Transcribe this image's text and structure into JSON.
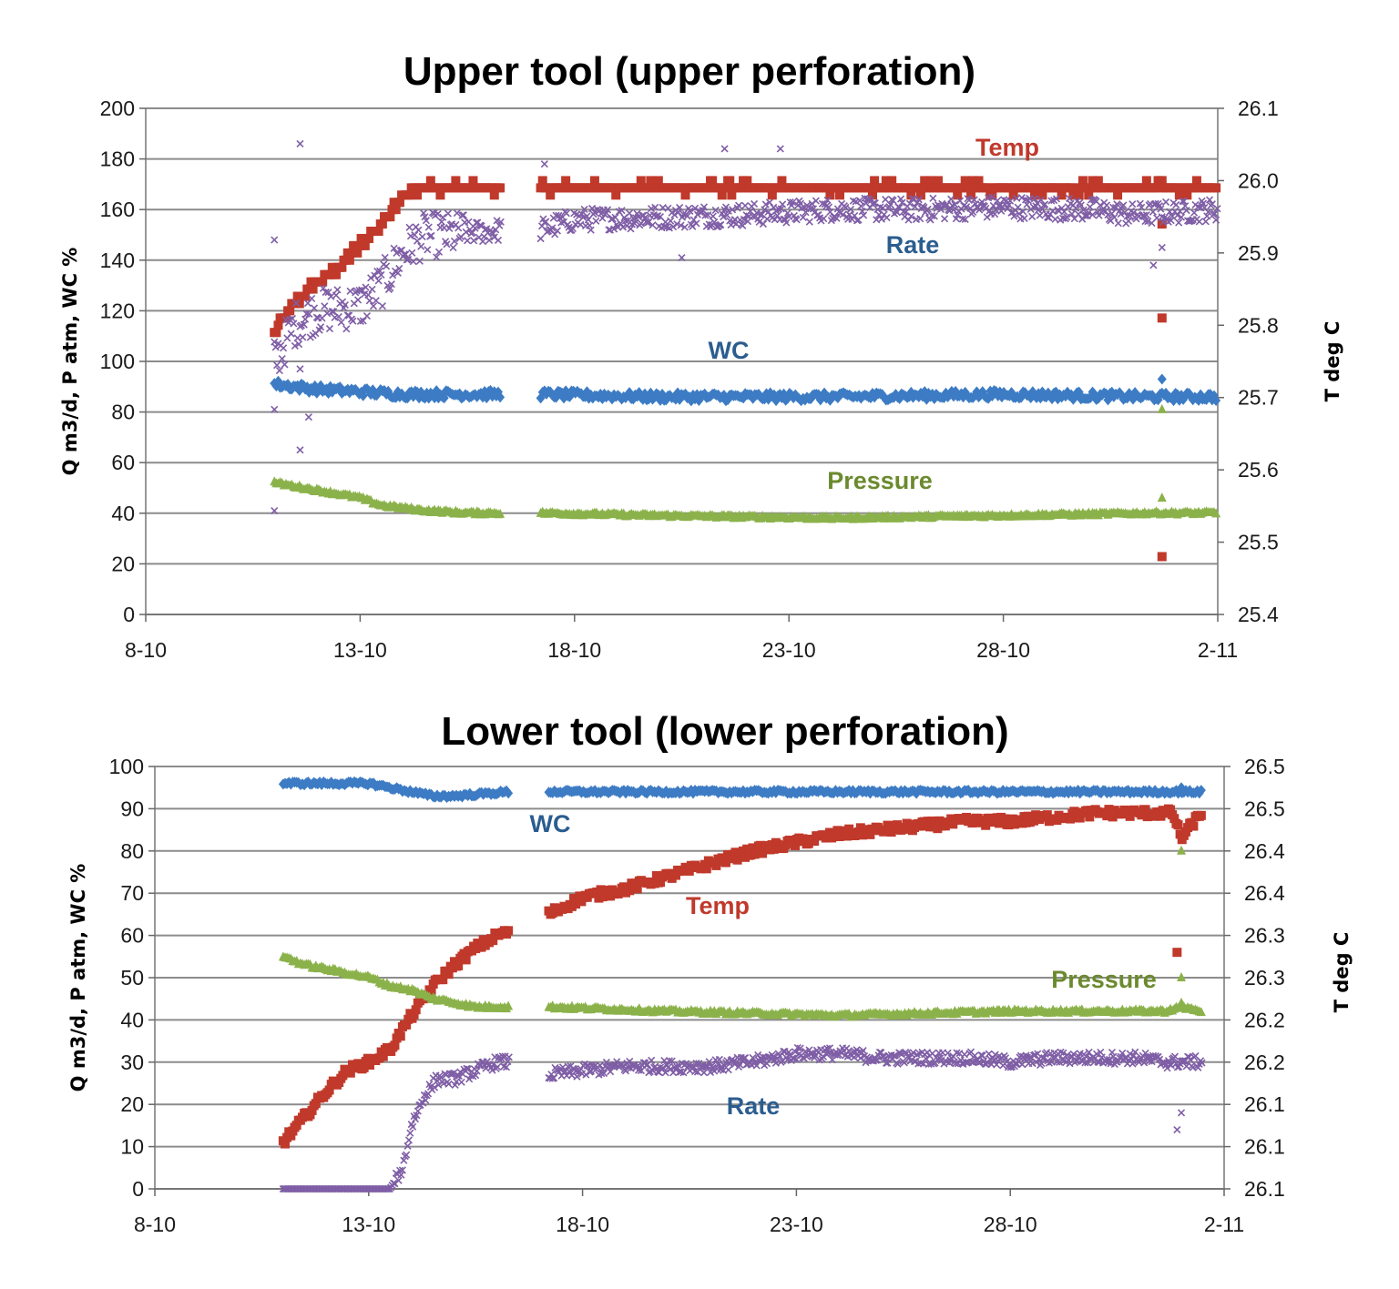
{
  "colors": {
    "temp": "#c0392b",
    "rate": "#7f5ea6",
    "wc": "#3d7cc4",
    "pressure": "#8bb24a",
    "wc_label": "#2b5d8f",
    "rate_label": "#2b5d8f",
    "pressure_label": "#6b8a2e",
    "grid": "#8c8c8c"
  },
  "chart_data": [
    {
      "type": "scatter",
      "title": "Upper tool (upper perforation)",
      "ylabel": "Q m3/d, P atm, WC %",
      "y2label": "T deg C",
      "xlim": [
        0,
        25
      ],
      "ylim": [
        0,
        200
      ],
      "y2lim": [
        25.4,
        26.1
      ],
      "x_ticks": [
        0,
        5,
        10,
        15,
        20,
        25
      ],
      "x_tick_labels": [
        "8-10",
        "13-10",
        "18-10",
        "23-10",
        "28-10",
        "2-11"
      ],
      "y_ticks": [
        "0",
        "20",
        "40",
        "60",
        "80",
        "100",
        "120",
        "140",
        "160",
        "180",
        "200"
      ],
      "y2_ticks": [
        "25.4",
        "25.5",
        "25.6",
        "25.7",
        "25.8",
        "25.9",
        "26.0",
        "26.1"
      ],
      "gap": [
        8.3,
        9.2
      ],
      "labels": {
        "temp": "Temp",
        "rate": "Rate",
        "wc": "WC",
        "pressure": "Pressure"
      },
      "series": [
        {
          "name": "Temp",
          "axis": "y2",
          "marker": "square",
          "key": "temp",
          "values": [
            [
              3.0,
              25.79
            ],
            [
              3.5,
              25.83
            ],
            [
              4.0,
              25.86
            ],
            [
              4.5,
              25.88
            ],
            [
              5.0,
              25.91
            ],
            [
              5.5,
              25.94
            ],
            [
              6.0,
              25.98
            ],
            [
              6.5,
              25.99
            ],
            [
              8.3,
              25.99
            ],
            [
              9.2,
              25.99
            ],
            [
              25.0,
              25.99
            ]
          ],
          "outliers": [
            [
              23.7,
              25.94
            ],
            [
              23.7,
              25.81
            ],
            [
              23.7,
              25.48
            ]
          ]
        },
        {
          "name": "Rate",
          "axis": "y",
          "marker": "x",
          "key": "rate",
          "values": [
            [
              3.0,
              100
            ],
            [
              3.5,
              115
            ],
            [
              4.0,
              120
            ],
            [
              5.0,
              122
            ],
            [
              5.5,
              130
            ],
            [
              6.0,
              143
            ],
            [
              6.5,
              150
            ],
            [
              7.0,
              150
            ],
            [
              8.3,
              152
            ],
            [
              9.2,
              152
            ],
            [
              10.0,
              156
            ],
            [
              12.0,
              157
            ],
            [
              14.0,
              158
            ],
            [
              16.0,
              160
            ],
            [
              18.0,
              160
            ],
            [
              20.0,
              161
            ],
            [
              22.0,
              160
            ],
            [
              23.0,
              158
            ],
            [
              25.0,
              160
            ]
          ],
          "outliers": [
            [
              3.0,
              148
            ],
            [
              3.0,
              81
            ],
            [
              3.0,
              41
            ],
            [
              3.6,
              65
            ],
            [
              3.6,
              97
            ],
            [
              3.6,
              186
            ],
            [
              3.8,
              78
            ],
            [
              9.3,
              178
            ],
            [
              12.5,
              141
            ],
            [
              13.5,
              184
            ],
            [
              14.8,
              184
            ],
            [
              23.5,
              138
            ],
            [
              23.7,
              145
            ]
          ]
        },
        {
          "name": "WC",
          "axis": "y",
          "marker": "diamond",
          "key": "wc",
          "values": [
            [
              3.0,
              91
            ],
            [
              4.0,
              89
            ],
            [
              5.0,
              88
            ],
            [
              6.0,
              87
            ],
            [
              8.3,
              87
            ],
            [
              9.2,
              87
            ],
            [
              12.0,
              86
            ],
            [
              16.0,
              86
            ],
            [
              20.0,
              87
            ],
            [
              23.5,
              86
            ],
            [
              25.0,
              86
            ]
          ],
          "outliers": [
            [
              23.7,
              93
            ]
          ]
        },
        {
          "name": "Pressure",
          "axis": "y",
          "marker": "triangle",
          "key": "pressure",
          "values": [
            [
              3.0,
              52
            ],
            [
              4.0,
              49
            ],
            [
              5.0,
              46
            ],
            [
              5.5,
              43
            ],
            [
              6.5,
              41
            ],
            [
              7.5,
              40
            ],
            [
              8.3,
              40
            ],
            [
              9.2,
              40
            ],
            [
              12.0,
              39
            ],
            [
              16.0,
              38
            ],
            [
              20.0,
              39
            ],
            [
              23.5,
              40
            ],
            [
              25.0,
              40
            ]
          ],
          "outliers": [
            [
              23.7,
              46
            ],
            [
              23.7,
              81
            ]
          ]
        }
      ]
    },
    {
      "type": "scatter",
      "title": "Lower tool (lower perforation)",
      "ylabel": "Q m3/d, P atm, WC %",
      "y2label": "T deg C",
      "xlim": [
        0,
        25
      ],
      "ylim": [
        0,
        100
      ],
      "y2lim": [
        26.1,
        26.5
      ],
      "x_ticks": [
        0,
        5,
        10,
        15,
        20,
        25
      ],
      "x_tick_labels": [
        "8-10",
        "13-10",
        "18-10",
        "23-10",
        "28-10",
        "2-11"
      ],
      "y_ticks": [
        "0",
        "10",
        "20",
        "30",
        "40",
        "50",
        "60",
        "70",
        "80",
        "90",
        "100"
      ],
      "y2_ticks": [
        "26.1",
        "26.1",
        "26.1",
        "26.2",
        "26.2",
        "26.3",
        "26.3",
        "26.4",
        "26.4",
        "26.5",
        "26.5"
      ],
      "gap": [
        8.3,
        9.2
      ],
      "labels": {
        "temp": "Temp",
        "rate": "Rate",
        "wc": "WC",
        "pressure": "Pressure"
      },
      "series": [
        {
          "name": "Temp",
          "axis": "y",
          "marker": "square",
          "key": "temp",
          "values": [
            [
              3.0,
              11
            ],
            [
              3.5,
              17
            ],
            [
              4.0,
              23
            ],
            [
              4.5,
              28
            ],
            [
              5.0,
              30
            ],
            [
              5.5,
              33
            ],
            [
              6.0,
              41
            ],
            [
              6.5,
              48
            ],
            [
              7.0,
              53
            ],
            [
              7.5,
              57
            ],
            [
              8.0,
              60
            ],
            [
              8.3,
              61
            ],
            [
              9.2,
              65
            ],
            [
              10.0,
              69
            ],
            [
              11.0,
              71
            ],
            [
              12.0,
              74
            ],
            [
              13.0,
              77
            ],
            [
              14.0,
              80
            ],
            [
              15.0,
              82
            ],
            [
              16.0,
              84
            ],
            [
              17.0,
              85
            ],
            [
              18.0,
              86
            ],
            [
              19.0,
              87
            ],
            [
              20.0,
              87
            ],
            [
              21.0,
              88
            ],
            [
              22.0,
              89
            ],
            [
              23.0,
              89
            ],
            [
              23.8,
              89
            ],
            [
              24.0,
              83
            ],
            [
              24.3,
              87
            ],
            [
              24.5,
              89
            ]
          ],
          "outliers": [
            [
              23.9,
              56
            ]
          ]
        },
        {
          "name": "Rate",
          "axis": "y",
          "marker": "x",
          "key": "rate",
          "values": [
            [
              3.0,
              0
            ],
            [
              4.0,
              0
            ],
            [
              5.0,
              0
            ],
            [
              5.5,
              0
            ],
            [
              5.8,
              5
            ],
            [
              6.0,
              15
            ],
            [
              6.3,
              22
            ],
            [
              6.6,
              26
            ],
            [
              7.0,
              26
            ],
            [
              7.5,
              28
            ],
            [
              8.0,
              30
            ],
            [
              8.3,
              30
            ],
            [
              9.2,
              27
            ],
            [
              10.0,
              28
            ],
            [
              11.0,
              29
            ],
            [
              12.0,
              29
            ],
            [
              13.0,
              29
            ],
            [
              14.0,
              30
            ],
            [
              15.0,
              32
            ],
            [
              16.0,
              32
            ],
            [
              17.0,
              31
            ],
            [
              18.0,
              31
            ],
            [
              19.0,
              31
            ],
            [
              20.0,
              30
            ],
            [
              21.0,
              31
            ],
            [
              22.0,
              31
            ],
            [
              23.0,
              31
            ],
            [
              23.6,
              30
            ],
            [
              24.5,
              30
            ]
          ],
          "outliers": [
            [
              23.9,
              14
            ],
            [
              24.0,
              18
            ]
          ]
        },
        {
          "name": "WC",
          "axis": "y",
          "marker": "diamond",
          "key": "wc",
          "values": [
            [
              3.0,
              96
            ],
            [
              5.0,
              96
            ],
            [
              5.5,
              95
            ],
            [
              6.0,
              94
            ],
            [
              6.5,
              93
            ],
            [
              7.0,
              93
            ],
            [
              8.3,
              94
            ],
            [
              9.2,
              94
            ],
            [
              12.0,
              94
            ],
            [
              16.0,
              94
            ],
            [
              20.0,
              94
            ],
            [
              24.0,
              94
            ],
            [
              24.5,
              94
            ]
          ],
          "outliers": [
            [
              24.0,
              95
            ]
          ]
        },
        {
          "name": "Pressure",
          "axis": "y",
          "marker": "triangle",
          "key": "pressure",
          "values": [
            [
              3.0,
              55
            ],
            [
              3.5,
              53
            ],
            [
              4.0,
              52
            ],
            [
              4.5,
              51
            ],
            [
              5.0,
              50
            ],
            [
              5.5,
              48
            ],
            [
              6.0,
              47
            ],
            [
              6.5,
              45
            ],
            [
              7.0,
              44
            ],
            [
              7.5,
              43
            ],
            [
              8.3,
              43
            ],
            [
              9.2,
              43
            ],
            [
              12.0,
              42
            ],
            [
              16.0,
              41
            ],
            [
              20.0,
              42
            ],
            [
              23.6,
              42
            ],
            [
              24.0,
              43
            ],
            [
              24.5,
              42
            ]
          ],
          "outliers": [
            [
              24.0,
              80
            ],
            [
              24.0,
              50
            ],
            [
              24.0,
              44
            ]
          ]
        }
      ]
    }
  ]
}
